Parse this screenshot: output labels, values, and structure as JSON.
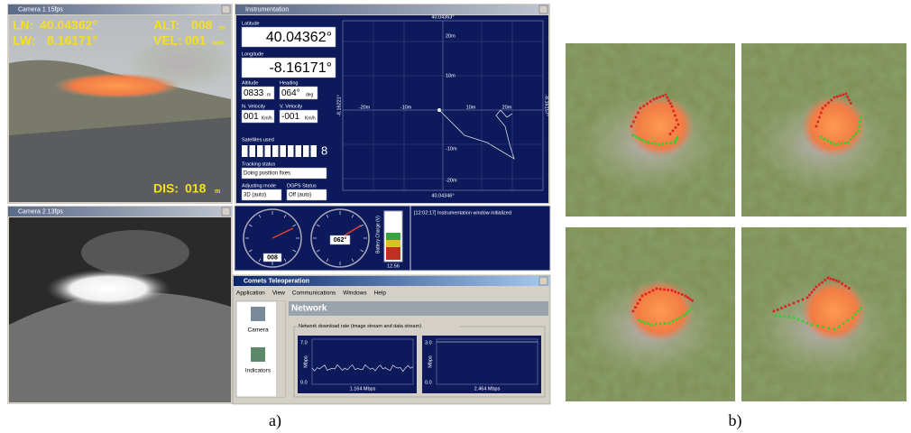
{
  "camera1": {
    "title": "Camera 1 15fps",
    "ln_label": "LN:",
    "ln": "40.04362°",
    "lw_label": "LW:",
    "lw": "8.16171°",
    "alt_label": "ALT:",
    "alt": "008",
    "alt_unit": "m",
    "vel_label": "VEL:",
    "vel": "001",
    "vel_unit": "km/h",
    "dis_label": "DIS:",
    "dis": "018",
    "dis_unit": "m"
  },
  "camera2": {
    "title": "Camera 2 13fps"
  },
  "instrumentation": {
    "title": "Instrumentation",
    "latitude_label": "Latitude",
    "latitude": "40.04362°",
    "longitude_label": "Longitude",
    "longitude": "-8.16171°",
    "altitude_label": "Altitude",
    "altitude": "0833",
    "altitude_unit": "m",
    "heading_label": "Heading",
    "heading": "064°",
    "heading_unit": "deg",
    "n_velocity_label": "N. Velocity",
    "n_velocity": "001",
    "n_velocity_unit": "Km/h",
    "v_velocity_label": "V. Velocity",
    "v_velocity": "-001",
    "v_velocity_unit": "Km/h",
    "satellites_label": "Satellites used",
    "satellites": "8",
    "tracking_label": "Tracking status",
    "tracking": "Doing position fixes",
    "adjusting_label": "Adjusting mode",
    "adjusting": "3D (auto)",
    "dgps_label": "DGPS Status",
    "dgps": "Off (auto)",
    "map": {
      "top": "40.04363°",
      "bottom": "40.04346°",
      "left": "-8.16221°",
      "right": "-8.16157°",
      "v_labels": [
        "20m",
        "10m",
        "-10m",
        "-20m"
      ],
      "h_labels": [
        "-20m",
        "-10m",
        "10m",
        "20m"
      ]
    }
  },
  "gauges": {
    "altitude": "008",
    "heading": "062°",
    "battery_label": "Battery Charge (V)",
    "battery": "12.56"
  },
  "log": {
    "message": "[12:02:17] Instrumentation window initialized"
  },
  "teleoperation": {
    "title": "Comets Teleoperation",
    "menu": [
      "Application",
      "View",
      "Communications",
      "Windows",
      "Help"
    ],
    "sidebar": [
      "Camera",
      "Indicators"
    ],
    "header": "Network",
    "group": "Network download rate (image stream and data stream)",
    "chart1": {
      "max": "7.0",
      "min": "0.0",
      "unit": "Mbps",
      "rate": "1.164 Mbps"
    },
    "chart2": {
      "max": "3.0",
      "min": "0.0",
      "unit": "Mbps",
      "rate": "2.464 Mbps"
    }
  },
  "captions": [
    "a)",
    "b)"
  ]
}
